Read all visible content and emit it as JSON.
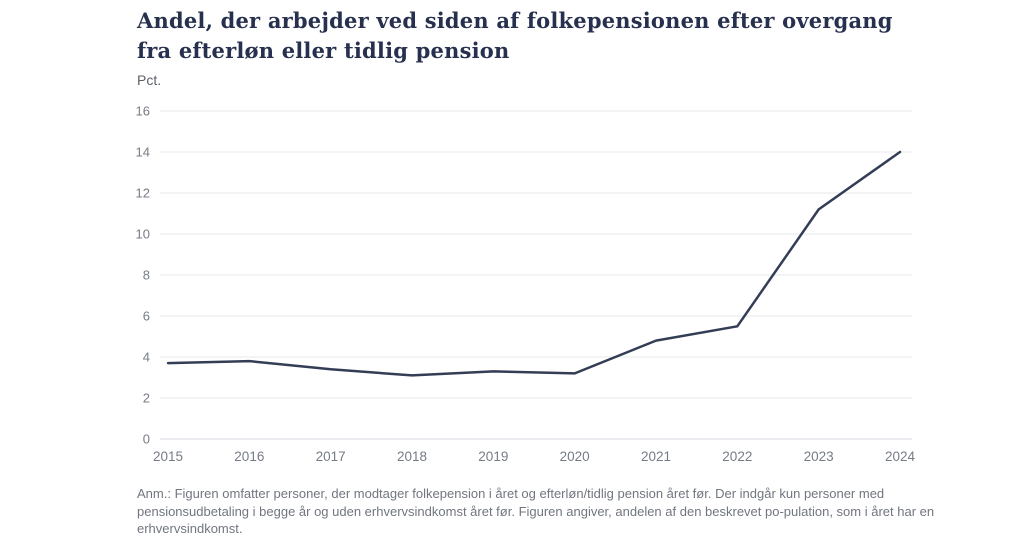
{
  "page": {
    "title": "Andel, der arbejder ved siden af folkepensionen efter overgang fra efterløn eller tidlig pension",
    "unit_label": "Pct.",
    "footnote": "Anm.: Figuren omfatter personer, der modtager folkepension i året og efterløn/tidlig pension året før. Der indgår kun personer med pensionsudbetaling i begge år og uden erhvervsindkomst året før. Figuren angiver, andelen af den beskrevet po-pulation, som i året har en erhvervsindkomst."
  },
  "colors": {
    "title_text": "#27304e",
    "axis_text": "#767c86",
    "unit_text": "#5b6169",
    "gridline": "#ebedf0",
    "baseline": "#dfe1e6",
    "line": "#333d55",
    "background": "#ffffff"
  },
  "chart_data": {
    "type": "line",
    "title": "Andel, der arbejder ved siden af folkepensionen efter overgang fra efterløn eller tidlig pension",
    "ylabel": "Pct.",
    "xlabel": "",
    "x": [
      2015,
      2016,
      2017,
      2018,
      2019,
      2020,
      2021,
      2022,
      2023,
      2024
    ],
    "values": [
      3.7,
      3.8,
      3.4,
      3.1,
      3.3,
      3.2,
      4.8,
      5.5,
      11.2,
      14.0
    ],
    "ylim": [
      0,
      16
    ],
    "ytick_step": 2,
    "grid": true,
    "legend": "none"
  }
}
